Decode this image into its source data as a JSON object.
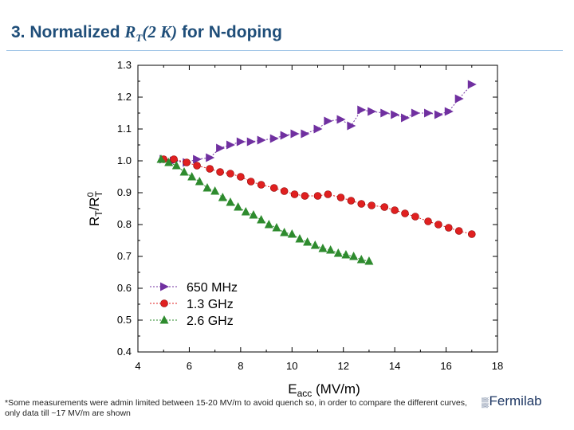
{
  "slide": {
    "title_prefix": "3. Normalized ",
    "title_math": "R",
    "title_math_sub": "T",
    "title_math_rest": "(2 K)",
    "title_suffix": " for N-doping",
    "footnote": "*Some measurements were admin limited between 15-20 MV/m to avoid quench so, in order to compare the different curves, only data till ~17 MV/m are shown",
    "logo_text": "Fermilab",
    "logo_icon": "fermilab-logo-icon"
  },
  "chart_data": {
    "type": "line",
    "xlabel_main": "E",
    "xlabel_sub": "acc",
    "xlabel_units": " (MV/m)",
    "ylabel_r1": "R",
    "ylabel_sub1": "T",
    "ylabel_slash": "/R",
    "ylabel_sub2": "T",
    "ylabel_sup2": "0",
    "xlim": [
      4,
      18
    ],
    "ylim": [
      0.4,
      1.3
    ],
    "xticks": [
      "4",
      "6",
      "8",
      "10",
      "12",
      "14",
      "16",
      "18"
    ],
    "yticks": [
      "0.4",
      "0.5",
      "0.6",
      "0.7",
      "0.8",
      "0.9",
      "1.0",
      "1.1",
      "1.2",
      "1.3"
    ],
    "legend_position": "bottom-left",
    "series": [
      {
        "name": "650 MHz",
        "color": "#7030a0",
        "marker": "triangle-right",
        "x": [
          5.0,
          5.4,
          5.9,
          6.3,
          6.8,
          7.2,
          7.6,
          8.0,
          8.4,
          8.8,
          9.3,
          9.7,
          10.1,
          10.5,
          11.0,
          11.4,
          11.9,
          12.3,
          12.7,
          13.1,
          13.6,
          14.0,
          14.4,
          14.8,
          15.3,
          15.7,
          16.1,
          16.5,
          17.0
        ],
        "y": [
          1.005,
          1.0,
          0.995,
          1.005,
          1.01,
          1.04,
          1.05,
          1.06,
          1.06,
          1.065,
          1.07,
          1.08,
          1.085,
          1.085,
          1.1,
          1.125,
          1.13,
          1.11,
          1.16,
          1.155,
          1.15,
          1.145,
          1.135,
          1.15,
          1.15,
          1.145,
          1.155,
          1.195,
          1.24
        ]
      },
      {
        "name": "1.3 GHz",
        "color": "#e02020",
        "marker": "circle",
        "x": [
          5.0,
          5.4,
          5.9,
          6.3,
          6.8,
          7.2,
          7.6,
          8.0,
          8.4,
          8.8,
          9.3,
          9.7,
          10.1,
          10.5,
          11.0,
          11.4,
          11.9,
          12.3,
          12.7,
          13.1,
          13.6,
          14.0,
          14.4,
          14.8,
          15.3,
          15.7,
          16.1,
          16.5,
          17.0
        ],
        "y": [
          1.005,
          1.005,
          0.995,
          0.985,
          0.975,
          0.965,
          0.96,
          0.95,
          0.935,
          0.925,
          0.915,
          0.905,
          0.895,
          0.89,
          0.89,
          0.895,
          0.885,
          0.875,
          0.865,
          0.86,
          0.855,
          0.845,
          0.835,
          0.825,
          0.81,
          0.8,
          0.79,
          0.78,
          0.77
        ]
      },
      {
        "name": "2.6 GHz",
        "color": "#2e8b2e",
        "marker": "triangle-up",
        "x": [
          4.9,
          5.2,
          5.5,
          5.8,
          6.1,
          6.4,
          6.7,
          7.0,
          7.3,
          7.6,
          7.9,
          8.2,
          8.5,
          8.8,
          9.1,
          9.4,
          9.7,
          10.0,
          10.3,
          10.6,
          10.9,
          11.2,
          11.5,
          11.8,
          12.1,
          12.4,
          12.7,
          13.0
        ],
        "y": [
          1.005,
          0.995,
          0.985,
          0.965,
          0.95,
          0.935,
          0.915,
          0.905,
          0.885,
          0.87,
          0.855,
          0.84,
          0.83,
          0.815,
          0.8,
          0.79,
          0.775,
          0.77,
          0.755,
          0.745,
          0.735,
          0.725,
          0.72,
          0.71,
          0.705,
          0.7,
          0.69,
          0.685
        ]
      }
    ]
  }
}
